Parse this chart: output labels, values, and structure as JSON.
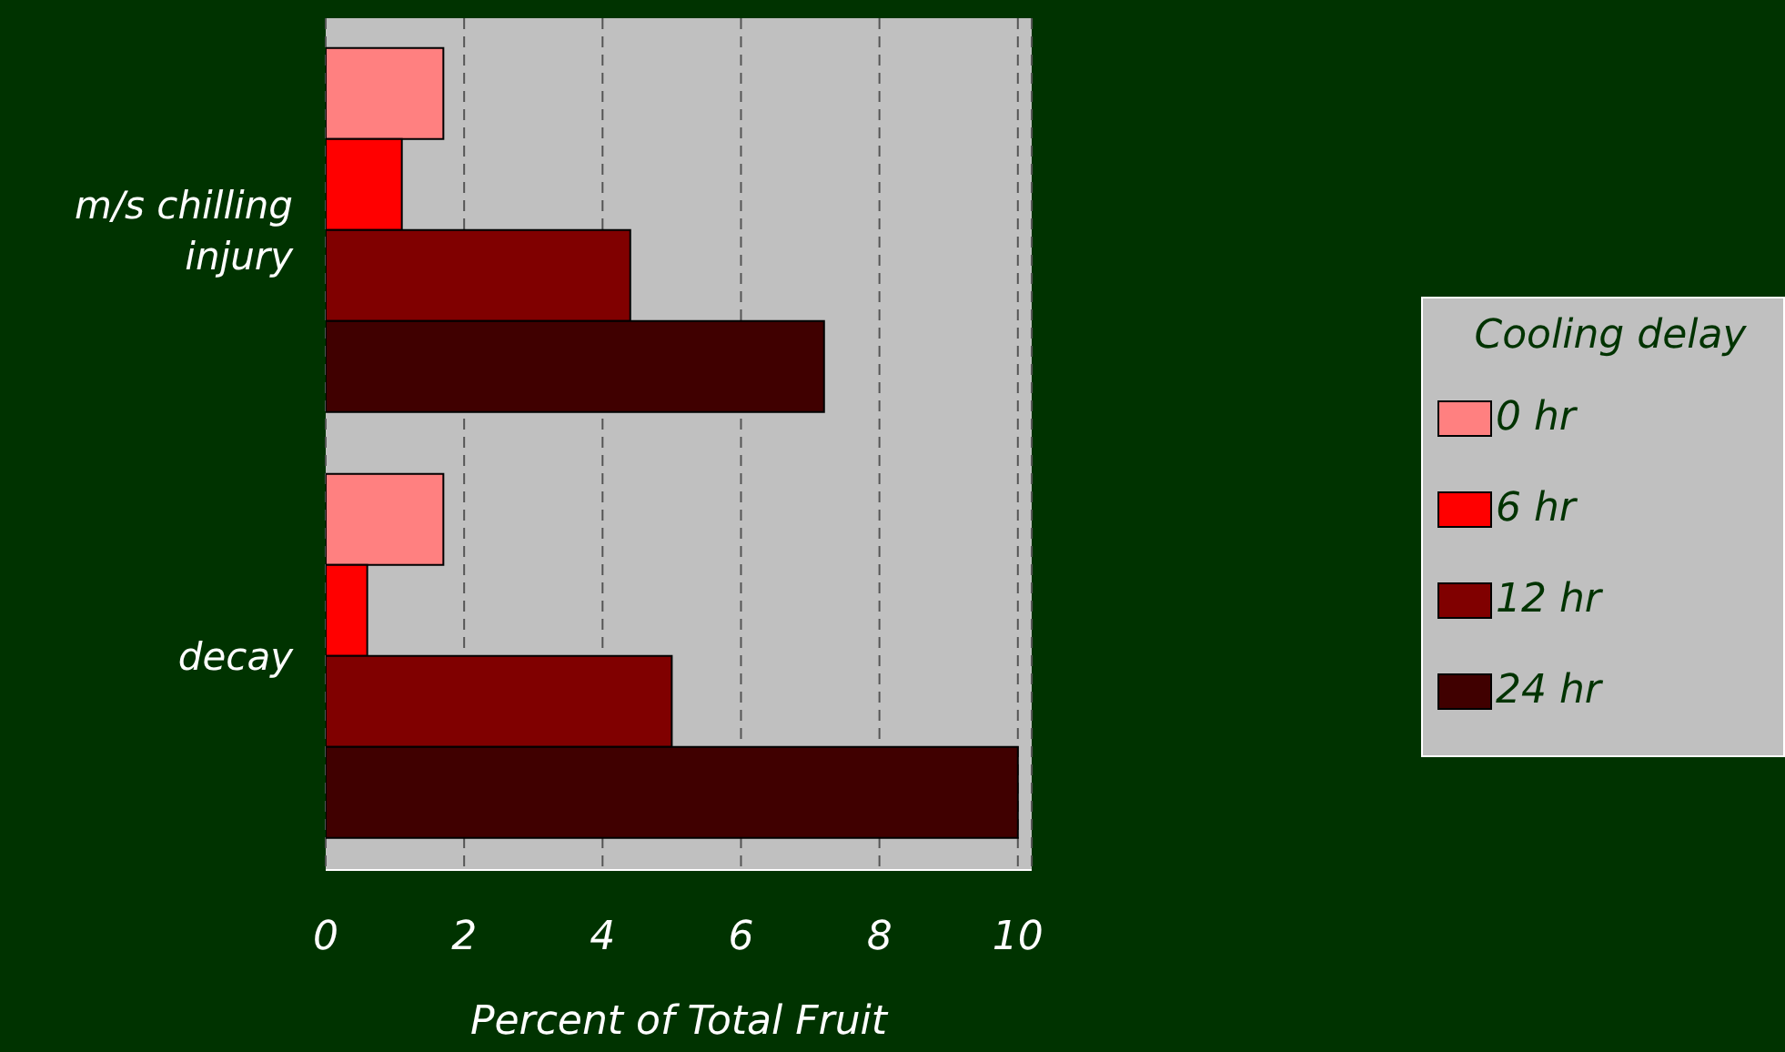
{
  "chart_data": {
    "type": "bar",
    "orientation": "horizontal",
    "categories": [
      "m/s chilling injury",
      "decay"
    ],
    "series": [
      {
        "name": "0 hr",
        "color": "#ff8080",
        "values": [
          1.7,
          1.7
        ]
      },
      {
        "name": "6 hr",
        "color": "#ff0000",
        "values": [
          1.1,
          0.6
        ]
      },
      {
        "name": "12 hr",
        "color": "#800000",
        "values": [
          4.4,
          5.0
        ]
      },
      {
        "name": "24 hr",
        "color": "#400000",
        "values": [
          7.2,
          10.0
        ]
      }
    ],
    "xlim": [
      0,
      10.2
    ],
    "xticks": [
      0,
      2,
      4,
      6,
      8,
      10
    ],
    "xlabel": "Percent of Total Fruit",
    "legend_title": "Cooling delay",
    "legend": "right",
    "grid": "x"
  }
}
